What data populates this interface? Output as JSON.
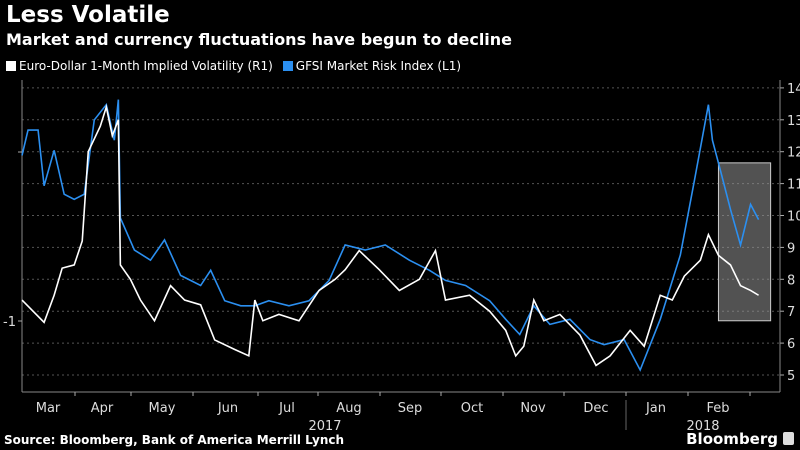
{
  "chart_data": {
    "type": "line",
    "title": "Less Volatile",
    "subtitle": "Market and currency fluctuations have begun to decline",
    "x_unit": "days since Mar 1 2017",
    "x_tick_labels": [
      "Mar",
      "Apr",
      "May",
      "Jun",
      "Jul",
      "Aug",
      "Sep",
      "Oct",
      "Nov",
      "Dec",
      "Jan",
      "Feb"
    ],
    "year_labels": [
      "2017",
      "2018"
    ],
    "left_axis": {
      "range": [
        -1.3,
        0.5
      ],
      "tick_labels": [
        "-1"
      ]
    },
    "right_axis": {
      "range": [
        4.5,
        14.3
      ],
      "ticks": [
        5,
        6,
        7,
        8,
        9,
        10,
        11,
        12,
        13,
        14
      ]
    },
    "grid": true,
    "legend_position": "top-left",
    "series": [
      {
        "name": "Euro-Dollar 1-Month Implied Volatility (R1)",
        "axis": "right",
        "color": "#ffffff",
        "points": [
          [
            3,
            7.35
          ],
          [
            14,
            6.65
          ],
          [
            19,
            7.5
          ],
          [
            23,
            8.35
          ],
          [
            29,
            8.45
          ],
          [
            33,
            9.2
          ],
          [
            36,
            12.0
          ],
          [
            42,
            12.8
          ],
          [
            45,
            13.4
          ],
          [
            48,
            12.5
          ],
          [
            51,
            13.0
          ],
          [
            52,
            8.45
          ],
          [
            57,
            8.0
          ],
          [
            62,
            7.35
          ],
          [
            69,
            6.7
          ],
          [
            77,
            7.8
          ],
          [
            84,
            7.35
          ],
          [
            92,
            7.2
          ],
          [
            99,
            6.1
          ],
          [
            109,
            5.8
          ],
          [
            116,
            5.6
          ],
          [
            119,
            7.35
          ],
          [
            123,
            6.7
          ],
          [
            131,
            6.9
          ],
          [
            141,
            6.7
          ],
          [
            151,
            7.65
          ],
          [
            159,
            8.0
          ],
          [
            164,
            8.3
          ],
          [
            171,
            8.9
          ],
          [
            181,
            8.3
          ],
          [
            191,
            7.65
          ],
          [
            201,
            8.0
          ],
          [
            209,
            8.9
          ],
          [
            214,
            7.35
          ],
          [
            226,
            7.5
          ],
          [
            236,
            7.0
          ],
          [
            244,
            6.4
          ],
          [
            249,
            5.6
          ],
          [
            253,
            5.9
          ],
          [
            258,
            7.35
          ],
          [
            263,
            6.7
          ],
          [
            271,
            6.9
          ],
          [
            281,
            6.25
          ],
          [
            289,
            5.3
          ],
          [
            296,
            5.6
          ],
          [
            306,
            6.4
          ],
          [
            313,
            5.9
          ],
          [
            321,
            7.5
          ],
          [
            327,
            7.35
          ],
          [
            333,
            8.1
          ],
          [
            341,
            8.6
          ],
          [
            345,
            9.4
          ],
          [
            350,
            8.75
          ],
          [
            356,
            8.45
          ],
          [
            361,
            7.8
          ],
          [
            366,
            7.65
          ],
          [
            370,
            7.5
          ]
        ]
      },
      {
        "name": "GFSI Market Risk Index (L1)",
        "axis": "left",
        "color": "#2b8ff0",
        "points": [
          [
            3,
            -0.02
          ],
          [
            6,
            0.13
          ],
          [
            11,
            0.13
          ],
          [
            14,
            -0.2
          ],
          [
            19,
            0.01
          ],
          [
            24,
            -0.25
          ],
          [
            29,
            -0.28
          ],
          [
            34,
            -0.25
          ],
          [
            39,
            0.19
          ],
          [
            45,
            0.28
          ],
          [
            49,
            0.07
          ],
          [
            51,
            0.31
          ],
          [
            52,
            -0.39
          ],
          [
            59,
            -0.58
          ],
          [
            67,
            -0.64
          ],
          [
            74,
            -0.52
          ],
          [
            82,
            -0.73
          ],
          [
            92,
            -0.79
          ],
          [
            97,
            -0.7
          ],
          [
            104,
            -0.88
          ],
          [
            112,
            -0.91
          ],
          [
            119,
            -0.91
          ],
          [
            126,
            -0.88
          ],
          [
            136,
            -0.91
          ],
          [
            146,
            -0.88
          ],
          [
            156,
            -0.76
          ],
          [
            164,
            -0.55
          ],
          [
            174,
            -0.58
          ],
          [
            184,
            -0.55
          ],
          [
            196,
            -0.64
          ],
          [
            206,
            -0.7
          ],
          [
            214,
            -0.76
          ],
          [
            224,
            -0.79
          ],
          [
            236,
            -0.88
          ],
          [
            244,
            -0.99
          ],
          [
            251,
            -1.08
          ],
          [
            258,
            -0.91
          ],
          [
            266,
            -1.02
          ],
          [
            276,
            -0.99
          ],
          [
            286,
            -1.11
          ],
          [
            293,
            -1.14
          ],
          [
            303,
            -1.11
          ],
          [
            311,
            -1.29
          ],
          [
            321,
            -0.99
          ],
          [
            331,
            -0.61
          ],
          [
            338,
            -0.17
          ],
          [
            345,
            0.28
          ],
          [
            347,
            0.07
          ],
          [
            351,
            -0.11
          ],
          [
            356,
            -0.34
          ],
          [
            361,
            -0.55
          ],
          [
            366,
            -0.31
          ],
          [
            370,
            -0.4
          ]
        ]
      }
    ],
    "highlight_box": {
      "x_range": [
        350,
        376
      ],
      "right_axis_range": [
        6.7,
        11.65
      ]
    }
  },
  "footer": {
    "source": "Source: Bloomberg, Bank of America Merrill Lynch",
    "brand": "Bloomberg"
  }
}
